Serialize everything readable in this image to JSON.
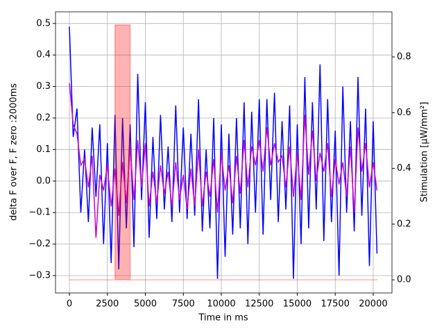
{
  "chart_data": {
    "type": "line",
    "xlabel": "Time in ms",
    "ylabel": "delta F over F, F zero :2000ms",
    "y2label": "Stimulation [μW/mm²]",
    "grid": true,
    "xlim": [
      -915,
      21235
    ],
    "ylim": [
      -0.355,
      0.537
    ],
    "y2lim": [
      -0.047,
      0.962
    ],
    "xticks": [
      0,
      2500,
      5000,
      7500,
      10000,
      12500,
      15000,
      17500,
      20000
    ],
    "yticks": [
      {
        "value": -0.3,
        "label": "−0.3"
      },
      {
        "value": -0.2,
        "label": "−0.2"
      },
      {
        "value": -0.1,
        "label": "−0.1"
      },
      {
        "value": 0,
        "label": "0.0"
      },
      0.1,
      0.2,
      0.3,
      0.4,
      0.5
    ],
    "y2ticks": [
      {
        "value": 0,
        "label": "0.0"
      },
      0.2,
      0.4,
      0.6,
      0.8
    ],
    "series": [
      {
        "color": "#0000ff",
        "x": [
          0,
          250,
          500,
          750,
          1000,
          1250,
          1500,
          1750,
          2000,
          2250,
          2500,
          2750,
          3000,
          3250,
          3500,
          3750,
          4000,
          4250,
          4500,
          4750,
          5000,
          5250,
          5500,
          5750,
          6000,
          6250,
          6500,
          6750,
          7000,
          7250,
          7500,
          7750,
          8000,
          8250,
          8500,
          8750,
          9000,
          9250,
          9500,
          9750,
          10000,
          10250,
          10500,
          10750,
          11000,
          11250,
          11500,
          11750,
          12000,
          12250,
          12500,
          12750,
          13000,
          13250,
          13500,
          13750,
          14000,
          14250,
          14500,
          14750,
          15000,
          15250,
          15500,
          15750,
          16000,
          16250,
          16500,
          16750,
          17000,
          17250,
          17500,
          17750,
          18000,
          18250,
          18500,
          18750,
          19000,
          19250,
          19500,
          19750,
          20000,
          20250
        ],
        "values": [
          0.49,
          0.14,
          0.23,
          -0.1,
          0.1,
          -0.13,
          0.17,
          -0.05,
          0.18,
          -0.2,
          0.12,
          -0.26,
          0.21,
          -0.28,
          0.2,
          -0.15,
          0.18,
          -0.21,
          0.34,
          -0.06,
          0.25,
          -0.18,
          0.14,
          -0.12,
          0.21,
          -0.09,
          0.11,
          -0.13,
          0.24,
          -0.1,
          0.17,
          -0.12,
          0.15,
          -0.11,
          0.26,
          -0.16,
          0.1,
          -0.15,
          0.2,
          -0.31,
          0.18,
          -0.24,
          0.15,
          -0.17,
          0.2,
          -0.15,
          0.25,
          -0.2,
          0.22,
          -0.1,
          0.26,
          -0.17,
          0.26,
          -0.06,
          0.28,
          -0.13,
          0.19,
          -0.09,
          0.24,
          -0.31,
          0.18,
          -0.2,
          0.33,
          -0.15,
          0.25,
          -0.09,
          0.37,
          -0.19,
          0.26,
          -0.13,
          0.16,
          -0.3,
          0.3,
          -0.1,
          0.19,
          -0.16,
          0.33,
          -0.11,
          0.23,
          -0.27,
          0.19,
          -0.23
        ]
      },
      {
        "color": "#cc00cc",
        "x": [
          0,
          250,
          500,
          750,
          1000,
          1250,
          1500,
          1750,
          2000,
          2250,
          2500,
          2750,
          3000,
          3250,
          3500,
          3750,
          4000,
          4250,
          4500,
          4750,
          5000,
          5250,
          5500,
          5750,
          6000,
          6250,
          6500,
          6750,
          7000,
          7250,
          7500,
          7750,
          8000,
          8250,
          8500,
          8750,
          9000,
          9250,
          9500,
          9750,
          10000,
          10250,
          10500,
          10750,
          11000,
          11250,
          11500,
          11750,
          12000,
          12250,
          12500,
          12750,
          13000,
          13250,
          13500,
          13750,
          14000,
          14250,
          14500,
          14750,
          15000,
          15250,
          15500,
          15750,
          16000,
          16250,
          16500,
          16750,
          17000,
          17250,
          17500,
          17750,
          18000,
          18250,
          18500,
          18750,
          19000,
          19250,
          19500,
          19750,
          20000,
          20250
        ],
        "values": [
          0.31,
          0.18,
          0.15,
          0.05,
          0.07,
          -0.02,
          0.08,
          -0.18,
          0.02,
          -0.03,
          0.05,
          -0.08,
          0.04,
          -0.11,
          0.06,
          -0.07,
          0.11,
          -0.06,
          0.13,
          -0.02,
          0.12,
          -0.08,
          0.03,
          -0.07,
          0.05,
          -0.04,
          0.03,
          -0.08,
          0.06,
          -0.06,
          0.02,
          -0.09,
          0.04,
          -0.08,
          0.1,
          -0.08,
          0.03,
          -0.05,
          0.07,
          -0.1,
          0.09,
          -0.03,
          0.05,
          -0.07,
          0.08,
          -0.04,
          0.13,
          -0.02,
          0.11,
          0.05,
          0.13,
          0.03,
          0.17,
          0.05,
          0.12,
          0.06,
          0.08,
          -0.02,
          0.11,
          -0.05,
          0.09,
          -0.06,
          0.21,
          0.02,
          0.16,
          0.0,
          0.09,
          0.03,
          0.12,
          -0.05,
          0.07,
          -0.01,
          0.06,
          -0.05,
          0.11,
          -0.1,
          0.17,
          0.03,
          0.12,
          -0.02,
          0.06,
          -0.03
        ]
      },
      {
        "color": "#ff0000",
        "axis": "y2",
        "fill": true,
        "x": [
          0,
          3000,
          3000,
          4000,
          4000,
          20300
        ],
        "values": [
          0,
          0,
          0.915,
          0.915,
          0,
          0
        ]
      }
    ]
  }
}
